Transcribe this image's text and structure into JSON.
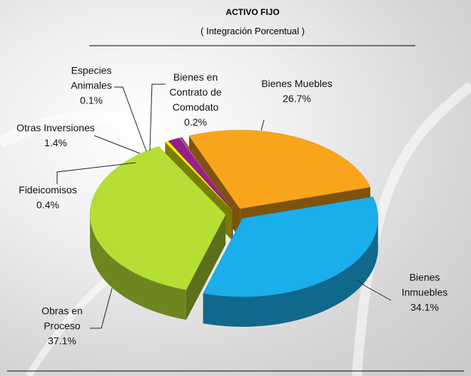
{
  "chart_data": {
    "type": "pie",
    "title": "ACTIVO FIJO",
    "subtitle": "( Integración Porcentual )",
    "categories": [
      "Bienes Muebles",
      "Bienes Inmuebles",
      "Obras en Proceso",
      "Fideicomisos",
      "Otras Inversiones",
      "Especies Animales",
      "Bienes en Contrato de Comodato"
    ],
    "values": [
      26.7,
      34.1,
      37.1,
      0.4,
      1.4,
      0.1,
      0.2
    ],
    "value_labels": [
      "26.7%",
      "34.1%",
      "37.1%",
      "0.4%",
      "1.4%",
      "0.1%",
      "0.2%"
    ],
    "colors": [
      "#f9a51c",
      "#1aaeea",
      "#b5df35",
      "#f5f500",
      "#9a1d8e",
      "#35c3e5",
      "#e2302c"
    ]
  }
}
